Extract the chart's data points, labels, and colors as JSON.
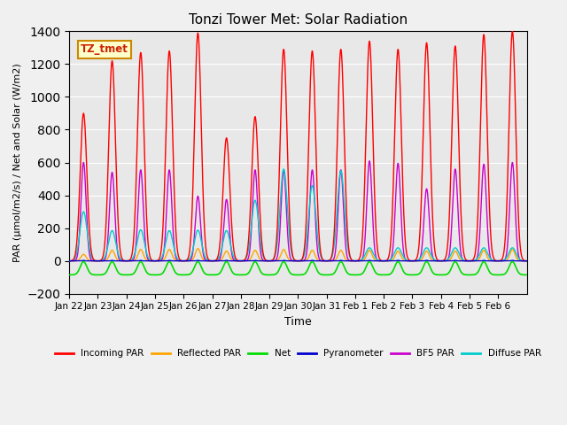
{
  "title": "Tonzi Tower Met: Solar Radiation",
  "ylabel": "PAR (μmol/m2/s) / Net and Solar (W/m2)",
  "xlabel": "Time",
  "ylim": [
    -200,
    1400
  ],
  "yticks": [
    -200,
    0,
    200,
    400,
    600,
    800,
    1000,
    1200,
    1400
  ],
  "xtick_labels": [
    "Jan 22",
    "Jan 23",
    "Jan 24",
    "Jan 25",
    "Jan 26",
    "Jan 27",
    "Jan 28",
    "Jan 29",
    "Jan 30",
    "Jan 31",
    "Feb 1",
    "Feb 2",
    "Feb 3",
    "Feb 4",
    "Feb 5",
    "Feb 6"
  ],
  "colors": {
    "incoming_par": "#ff0000",
    "reflected_par": "#ffa500",
    "net": "#00dd00",
    "pyranometer": "#0000cc",
    "bf5_par": "#cc00cc",
    "diffuse_par": "#00cccc"
  },
  "legend_labels": [
    "Incoming PAR",
    "Reflected PAR",
    "Net",
    "Pyranometer",
    "BF5 PAR",
    "Diffuse PAR"
  ],
  "annotation_text": "TZ_tmet",
  "annotation_color": "#cc2200",
  "annotation_bg": "#ffffcc",
  "annotation_edge": "#cc8800",
  "bg_color": "#e8e8e8",
  "grid_color": "#ffffff",
  "n_days": 16,
  "peak_incoming": [
    900,
    1220,
    1270,
    1280,
    1390,
    750,
    880,
    1290,
    1280,
    1290,
    1340,
    1290,
    1330,
    1310,
    1380,
    1400
  ],
  "peak_reflected": [
    40,
    65,
    70,
    70,
    75,
    60,
    65,
    70,
    65,
    65,
    65,
    60,
    60,
    60,
    65,
    70
  ],
  "peak_bf5": [
    600,
    540,
    555,
    555,
    395,
    375,
    555,
    555,
    555,
    555,
    610,
    595,
    440,
    560,
    590,
    600
  ],
  "peak_diffuse": [
    300,
    185,
    190,
    185,
    188,
    185,
    370,
    560,
    460,
    550,
    80,
    80,
    80,
    80,
    80,
    80
  ],
  "net_night": -85
}
